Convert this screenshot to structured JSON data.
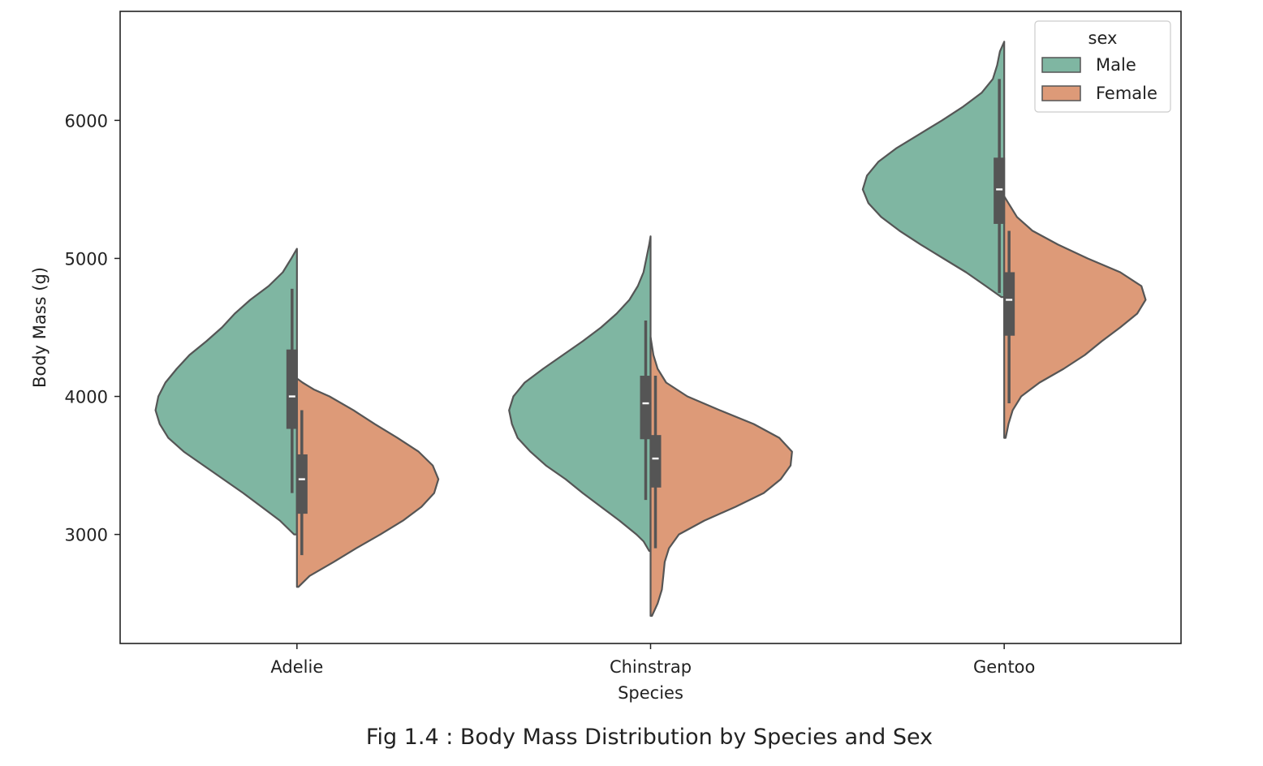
{
  "caption": "Fig 1.4 : Body Mass Distribution by Species and Sex",
  "chart_data": {
    "type": "violin",
    "split": true,
    "xlabel": "Species",
    "ylabel": "Body Mass (g)",
    "categories": [
      "Adelie",
      "Chinstrap",
      "Gentoo"
    ],
    "yticks": [
      3000,
      4000,
      5000,
      6000
    ],
    "ylim": [
      2210,
      6790
    ],
    "grid": false,
    "legend": {
      "title": "sex",
      "position": "top-right",
      "entries": [
        {
          "name": "Male",
          "color": "#7fb6a2"
        },
        {
          "name": "Female",
          "color": "#dd9a78"
        }
      ]
    },
    "series": [
      {
        "name": "Male",
        "color": "#7fb6a2",
        "side": "left",
        "stats": [
          {
            "min": 3300,
            "q1": 3765,
            "median": 4000,
            "q3": 4340,
            "max": 4780,
            "range": [
              3000,
              5070
            ]
          },
          {
            "min": 3250,
            "q1": 3690,
            "median": 3950,
            "q3": 4150,
            "max": 4550,
            "range": [
              2880,
              5160
            ]
          },
          {
            "min": 4750,
            "q1": 5250,
            "median": 5500,
            "q3": 5730,
            "max": 6300,
            "range": [
              4720,
              6570
            ]
          }
        ],
        "density": [
          [
            [
              3000,
              0.02
            ],
            [
              3100,
              0.12
            ],
            [
              3200,
              0.25
            ],
            [
              3300,
              0.38
            ],
            [
              3400,
              0.52
            ],
            [
              3500,
              0.66
            ],
            [
              3600,
              0.8
            ],
            [
              3700,
              0.91
            ],
            [
              3800,
              0.97
            ],
            [
              3900,
              1.0
            ],
            [
              4000,
              0.98
            ],
            [
              4100,
              0.93
            ],
            [
              4200,
              0.85
            ],
            [
              4300,
              0.76
            ],
            [
              4400,
              0.64
            ],
            [
              4500,
              0.53
            ],
            [
              4600,
              0.44
            ],
            [
              4700,
              0.33
            ],
            [
              4800,
              0.2
            ],
            [
              4900,
              0.1
            ],
            [
              5000,
              0.04
            ],
            [
              5070,
              0.0
            ]
          ],
          [
            [
              2880,
              0.01
            ],
            [
              2950,
              0.05
            ],
            [
              3000,
              0.1
            ],
            [
              3100,
              0.22
            ],
            [
              3200,
              0.35
            ],
            [
              3300,
              0.48
            ],
            [
              3400,
              0.6
            ],
            [
              3500,
              0.74
            ],
            [
              3600,
              0.85
            ],
            [
              3700,
              0.94
            ],
            [
              3800,
              0.98
            ],
            [
              3900,
              1.0
            ],
            [
              4000,
              0.97
            ],
            [
              4100,
              0.89
            ],
            [
              4200,
              0.76
            ],
            [
              4300,
              0.62
            ],
            [
              4400,
              0.48
            ],
            [
              4500,
              0.35
            ],
            [
              4600,
              0.24
            ],
            [
              4700,
              0.15
            ],
            [
              4800,
              0.09
            ],
            [
              4900,
              0.05
            ],
            [
              5000,
              0.03
            ],
            [
              5100,
              0.01
            ],
            [
              5160,
              0.0
            ]
          ],
          [
            [
              4720,
              0.02
            ],
            [
              4800,
              0.13
            ],
            [
              4900,
              0.27
            ],
            [
              5000,
              0.43
            ],
            [
              5100,
              0.59
            ],
            [
              5200,
              0.74
            ],
            [
              5300,
              0.87
            ],
            [
              5400,
              0.96
            ],
            [
              5500,
              1.0
            ],
            [
              5600,
              0.97
            ],
            [
              5700,
              0.89
            ],
            [
              5800,
              0.76
            ],
            [
              5900,
              0.6
            ],
            [
              6000,
              0.44
            ],
            [
              6100,
              0.29
            ],
            [
              6200,
              0.16
            ],
            [
              6300,
              0.08
            ],
            [
              6400,
              0.05
            ],
            [
              6500,
              0.03
            ],
            [
              6570,
              0.0
            ]
          ]
        ]
      },
      {
        "name": "Female",
        "color": "#dd9a78",
        "side": "right",
        "stats": [
          {
            "min": 2850,
            "q1": 3150,
            "median": 3400,
            "q3": 3580,
            "max": 3900,
            "range": [
              2620,
              4130
            ]
          },
          {
            "min": 2900,
            "q1": 3340,
            "median": 3550,
            "q3": 3720,
            "max": 4150,
            "range": [
              2410,
              4430
            ]
          },
          {
            "min": 3950,
            "q1": 4440,
            "median": 4700,
            "q3": 4900,
            "max": 5200,
            "range": [
              3700,
              5450
            ]
          }
        ],
        "density": [
          [
            [
              2620,
              0.01
            ],
            [
              2700,
              0.09
            ],
            [
              2800,
              0.26
            ],
            [
              2900,
              0.42
            ],
            [
              3000,
              0.59
            ],
            [
              3100,
              0.75
            ],
            [
              3200,
              0.88
            ],
            [
              3300,
              0.97
            ],
            [
              3400,
              1.0
            ],
            [
              3500,
              0.96
            ],
            [
              3600,
              0.86
            ],
            [
              3700,
              0.71
            ],
            [
              3800,
              0.55
            ],
            [
              3900,
              0.4
            ],
            [
              4000,
              0.23
            ],
            [
              4050,
              0.12
            ],
            [
              4100,
              0.04
            ],
            [
              4130,
              0.0
            ]
          ],
          [
            [
              2410,
              0.01
            ],
            [
              2500,
              0.05
            ],
            [
              2600,
              0.08
            ],
            [
              2700,
              0.09
            ],
            [
              2800,
              0.1
            ],
            [
              2900,
              0.13
            ],
            [
              3000,
              0.2
            ],
            [
              3100,
              0.38
            ],
            [
              3200,
              0.6
            ],
            [
              3300,
              0.8
            ],
            [
              3400,
              0.92
            ],
            [
              3500,
              0.99
            ],
            [
              3600,
              1.0
            ],
            [
              3700,
              0.91
            ],
            [
              3800,
              0.73
            ],
            [
              3900,
              0.49
            ],
            [
              4000,
              0.26
            ],
            [
              4100,
              0.11
            ],
            [
              4200,
              0.05
            ],
            [
              4300,
              0.02
            ],
            [
              4430,
              0.0
            ]
          ],
          [
            [
              3700,
              0.01
            ],
            [
              3750,
              0.02
            ],
            [
              3800,
              0.03
            ],
            [
              3900,
              0.06
            ],
            [
              4000,
              0.12
            ],
            [
              4100,
              0.25
            ],
            [
              4200,
              0.42
            ],
            [
              4300,
              0.57
            ],
            [
              4400,
              0.69
            ],
            [
              4500,
              0.82
            ],
            [
              4600,
              0.94
            ],
            [
              4700,
              1.0
            ],
            [
              4800,
              0.97
            ],
            [
              4900,
              0.82
            ],
            [
              5000,
              0.59
            ],
            [
              5100,
              0.38
            ],
            [
              5200,
              0.2
            ],
            [
              5300,
              0.09
            ],
            [
              5400,
              0.03
            ],
            [
              5450,
              0.0
            ]
          ]
        ]
      }
    ]
  }
}
